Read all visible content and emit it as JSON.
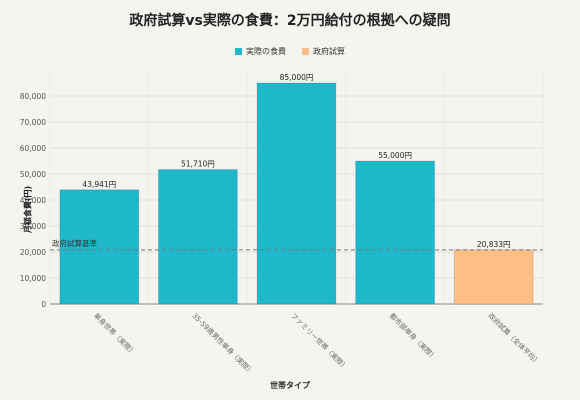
{
  "chart_data": {
    "type": "bar",
    "title": "政府試算vs実際の食費：2万円給付の根拠への疑問",
    "xlabel": "世帯タイプ",
    "ylabel": "月額食費(円)",
    "ylim": [
      0,
      90000
    ],
    "yticks": [
      0,
      10000,
      20000,
      30000,
      40000,
      50000,
      60000,
      70000,
      80000
    ],
    "ytick_labels": [
      "0",
      "10,000",
      "20,000",
      "30,000",
      "40,000",
      "50,000",
      "60,000",
      "70,000",
      "80,000"
    ],
    "grid": true,
    "legend_position": "top-center",
    "categories": [
      "単身世帯（実際）",
      "35-59歳男性単身（実際）",
      "ファミリー世帯（実際）",
      "都市部単身（実際）",
      "政府試算（全体平均）"
    ],
    "values": [
      43941,
      51710,
      85000,
      55000,
      20833
    ],
    "value_labels": [
      "43,941円",
      "51,710円",
      "85,000円",
      "55,000円",
      "20,833円"
    ],
    "bar_series": [
      "actual",
      "actual",
      "actual",
      "actual",
      "government"
    ],
    "series": [
      {
        "key": "actual",
        "name": "実際の食費",
        "color": "#1fb8cb"
      },
      {
        "key": "government",
        "name": "政府試算",
        "color": "#fdbf86"
      }
    ],
    "reference_line": {
      "value": 20833,
      "label": "政府試算基準",
      "color": "#777777"
    }
  }
}
